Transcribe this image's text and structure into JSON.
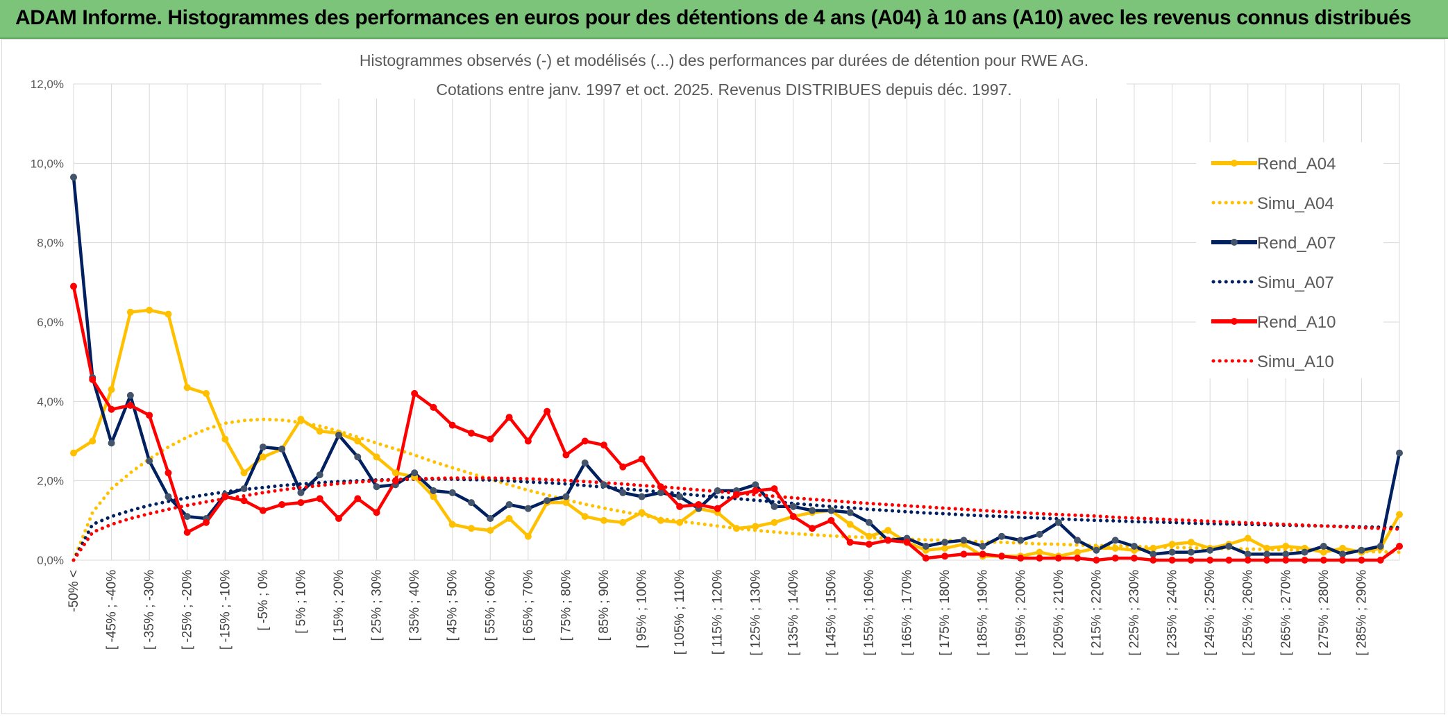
{
  "page_title": "ADAM Informe. Histogrammes des performances en euros pour des détentions de 4 ans (A04) à 10 ans (A10) avec les revenus connus distribués",
  "chart_data": {
    "type": "line",
    "title": "Histogrammes observés (-) et modélisés (...) des performances par durées de détention pour RWE AG.",
    "subtitle": "Cotations entre janv. 1997 et oct. 2025. Revenus DISTRIBUES depuis déc. 1997.",
    "xlabel": "",
    "ylabel": "",
    "ylim": [
      0,
      12
    ],
    "y_ticks": [
      "0,0%",
      "2,0%",
      "4,0%",
      "6,0%",
      "8,0%",
      "10,0%",
      "12,0%"
    ],
    "grid": true,
    "legend_position": "right",
    "x_tick_labels": [
      "-50% <",
      "[ -45% ; -40%",
      "[ -35% ; -30%",
      "[ -25% ; -20%",
      "[ -15% ; -10%",
      "[ -5% ; 0%",
      "[ 5% ; 10%",
      "[ 15% ; 20%",
      "[ 25% ; 30%",
      "[ 35% ; 40%",
      "[ 45% ; 50%",
      "[ 55% ; 60%",
      "[ 65% ; 70%",
      "[ 75% ; 80%",
      "[ 85% ; 90%",
      "[ 95% ; 100%",
      "[ 105% ; 110%",
      "[ 115% ; 120%",
      "[ 125% ; 130%",
      "[ 135% ; 140%",
      "[ 145% ; 150%",
      "[ 155% ; 160%",
      "[ 165% ; 170%",
      "[ 175% ; 180%",
      "[ 185% ; 190%",
      "[ 195% ; 200%",
      "[ 205% ; 210%",
      "[ 215% ; 220%",
      "[ 225% ; 230%",
      "[ 235% ; 240%",
      "[ 245% ; 250%",
      "[ 255% ; 260%",
      "[ 265% ; 270%",
      "[ 275% ; 280%",
      "[ 285% ; 290%"
    ],
    "n_points": 71,
    "series": [
      {
        "name": "Rend_A04",
        "style": "solid",
        "color": "#ffc000",
        "values": [
          2.7,
          3.0,
          4.3,
          6.25,
          6.3,
          6.2,
          4.35,
          4.2,
          3.05,
          2.2,
          2.6,
          2.8,
          3.55,
          3.25,
          3.2,
          3.0,
          2.6,
          2.2,
          2.1,
          1.6,
          0.9,
          0.8,
          0.75,
          1.05,
          0.6,
          1.45,
          1.45,
          1.1,
          1.0,
          0.95,
          1.2,
          1.0,
          0.95,
          1.3,
          1.2,
          0.8,
          0.85,
          0.95,
          1.1,
          1.2,
          1.25,
          0.9,
          0.6,
          0.75,
          0.45,
          0.25,
          0.3,
          0.4,
          0.1,
          0.1,
          0.1,
          0.2,
          0.1,
          0.2,
          0.3,
          0.3,
          0.25,
          0.3,
          0.4,
          0.45,
          0.3,
          0.4,
          0.55,
          0.3,
          0.35,
          0.3,
          0.2,
          0.3,
          0.2,
          0.3,
          1.15
        ]
      },
      {
        "name": "Simu_A04",
        "style": "dotted",
        "color": "#ffc000",
        "values": [
          0.0,
          1.2,
          1.8,
          2.2,
          2.55,
          2.85,
          3.1,
          3.3,
          3.45,
          3.52,
          3.55,
          3.53,
          3.47,
          3.38,
          3.25,
          3.1,
          2.95,
          2.8,
          2.65,
          2.48,
          2.33,
          2.18,
          2.04,
          1.9,
          1.76,
          1.64,
          1.52,
          1.41,
          1.31,
          1.22,
          1.13,
          1.05,
          0.98,
          0.92,
          0.86,
          0.8,
          0.75,
          0.71,
          0.67,
          0.64,
          0.61,
          0.59,
          0.57,
          0.55,
          0.53,
          0.51,
          0.5,
          0.48,
          0.46,
          0.45,
          0.43,
          0.41,
          0.4,
          0.38,
          0.37,
          0.36,
          0.35,
          0.33,
          0.32,
          0.31,
          0.3,
          0.29,
          0.28,
          0.27,
          0.26,
          0.25,
          0.24,
          0.23,
          0.22,
          0.21,
          0.2
        ]
      },
      {
        "name": "Rend_A07",
        "style": "solid",
        "color": "#002060",
        "values": [
          9.65,
          4.6,
          2.95,
          4.15,
          2.5,
          1.6,
          1.1,
          1.05,
          1.65,
          1.8,
          2.85,
          2.8,
          1.7,
          2.15,
          3.15,
          2.6,
          1.85,
          1.9,
          2.2,
          1.75,
          1.7,
          1.45,
          1.05,
          1.4,
          1.3,
          1.5,
          1.6,
          2.45,
          1.9,
          1.7,
          1.6,
          1.7,
          1.6,
          1.3,
          1.75,
          1.75,
          1.9,
          1.35,
          1.35,
          1.25,
          1.25,
          1.2,
          0.95,
          0.5,
          0.55,
          0.35,
          0.45,
          0.5,
          0.35,
          0.6,
          0.5,
          0.65,
          0.95,
          0.5,
          0.25,
          0.5,
          0.35,
          0.15,
          0.2,
          0.2,
          0.25,
          0.35,
          0.15,
          0.15,
          0.15,
          0.2,
          0.35,
          0.15,
          0.25,
          0.35,
          2.7
        ]
      },
      {
        "name": "Simu_A07",
        "style": "dotted",
        "color": "#002060",
        "values": [
          0.0,
          0.9,
          1.1,
          1.25,
          1.38,
          1.48,
          1.57,
          1.65,
          1.72,
          1.78,
          1.83,
          1.88,
          1.92,
          1.95,
          1.98,
          2.0,
          2.02,
          2.03,
          2.04,
          2.04,
          2.04,
          2.03,
          2.02,
          2.0,
          1.97,
          1.95,
          1.92,
          1.88,
          1.84,
          1.8,
          1.76,
          1.72,
          1.68,
          1.63,
          1.59,
          1.55,
          1.51,
          1.47,
          1.43,
          1.39,
          1.35,
          1.32,
          1.28,
          1.25,
          1.22,
          1.19,
          1.17,
          1.14,
          1.12,
          1.1,
          1.08,
          1.06,
          1.04,
          1.02,
          1.0,
          0.99,
          0.97,
          0.96,
          0.95,
          0.93,
          0.92,
          0.91,
          0.9,
          0.89,
          0.88,
          0.87,
          0.86,
          0.85,
          0.84,
          0.83,
          0.82
        ]
      },
      {
        "name": "Rend_A10",
        "style": "solid",
        "color": "#ff0000",
        "values": [
          6.9,
          4.55,
          3.8,
          3.9,
          3.65,
          2.2,
          0.7,
          0.95,
          1.6,
          1.5,
          1.25,
          1.4,
          1.45,
          1.55,
          1.05,
          1.55,
          1.2,
          2.0,
          4.2,
          3.85,
          3.4,
          3.2,
          3.05,
          3.6,
          3.0,
          3.75,
          2.65,
          3.0,
          2.9,
          2.35,
          2.55,
          1.85,
          1.35,
          1.4,
          1.3,
          1.65,
          1.75,
          1.8,
          1.1,
          0.8,
          1.0,
          0.45,
          0.4,
          0.5,
          0.45,
          0.05,
          0.1,
          0.15,
          0.15,
          0.1,
          0.05,
          0.05,
          0.05,
          0.05,
          0.0,
          0.05,
          0.05,
          0.0,
          0.0,
          0.0,
          0.0,
          0.0,
          0.0,
          0.0,
          0.0,
          0.0,
          0.0,
          0.0,
          0.0,
          0.0,
          0.35
        ]
      },
      {
        "name": "Simu_A10",
        "style": "dotted",
        "color": "#ff0000",
        "values": [
          0.0,
          0.7,
          0.9,
          1.05,
          1.17,
          1.28,
          1.38,
          1.47,
          1.55,
          1.62,
          1.7,
          1.77,
          1.83,
          1.88,
          1.93,
          1.97,
          2.0,
          2.03,
          2.05,
          2.06,
          2.07,
          2.07,
          2.07,
          2.06,
          2.05,
          2.03,
          2.01,
          1.98,
          1.95,
          1.92,
          1.88,
          1.85,
          1.81,
          1.77,
          1.73,
          1.69,
          1.65,
          1.61,
          1.57,
          1.53,
          1.5,
          1.46,
          1.43,
          1.4,
          1.37,
          1.34,
          1.31,
          1.28,
          1.25,
          1.22,
          1.2,
          1.17,
          1.15,
          1.13,
          1.11,
          1.08,
          1.06,
          1.04,
          1.02,
          1.0,
          0.98,
          0.96,
          0.94,
          0.92,
          0.9,
          0.88,
          0.86,
          0.84,
          0.82,
          0.8,
          0.78
        ]
      }
    ]
  }
}
